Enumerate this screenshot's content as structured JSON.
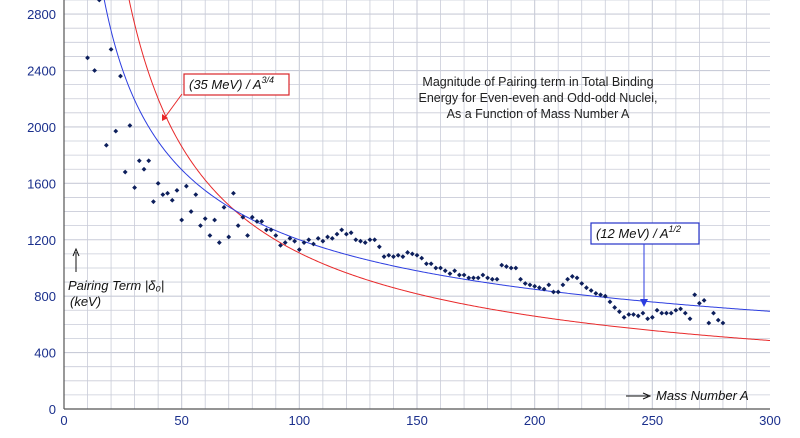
{
  "chart_data": {
    "type": "scatter",
    "title_lines": [
      "Magnitude of Pairing term in Total Binding",
      "Energy for Even-even and Odd-odd Nuclei,",
      "As a Function of Mass Number A"
    ],
    "ylabel_lines": [
      "Pairing Term |δ₀|",
      "(keV)"
    ],
    "xlabel": "Mass Number A",
    "xlim": [
      0,
      300
    ],
    "ylim": [
      0,
      2900
    ],
    "x_ticks": [
      0,
      50,
      100,
      150,
      200,
      250,
      300
    ],
    "y_ticks": [
      0,
      400,
      800,
      1200,
      1600,
      2000,
      2400,
      2800
    ],
    "grid": true,
    "colors": {
      "points": "#0d1f5c",
      "red_curve": "#e8292a",
      "blue_curve": "#2d3ee0",
      "grid": "#c9ccd8",
      "tick_text": "#1a2f8c"
    },
    "curves": [
      {
        "label_main": "(35 MeV) / A",
        "label_exp": "3/4",
        "coef_kev": 35000,
        "power": 0.75,
        "color": "red"
      },
      {
        "label_main": "(12 MeV) / A",
        "label_exp": "1/2",
        "coef_kev": 12000,
        "power": 0.5,
        "color": "blue"
      }
    ],
    "points": [
      [
        10,
        2490
      ],
      [
        11,
        2950
      ],
      [
        13,
        2400
      ],
      [
        15,
        2900
      ],
      [
        18,
        1870
      ],
      [
        20,
        2550
      ],
      [
        22,
        1970
      ],
      [
        24,
        2360
      ],
      [
        26,
        1680
      ],
      [
        28,
        2010
      ],
      [
        30,
        1570
      ],
      [
        32,
        1760
      ],
      [
        34,
        1700
      ],
      [
        36,
        1760
      ],
      [
        38,
        1470
      ],
      [
        40,
        1600
      ],
      [
        42,
        1520
      ],
      [
        44,
        1530
      ],
      [
        46,
        1480
      ],
      [
        48,
        1550
      ],
      [
        50,
        1340
      ],
      [
        52,
        1580
      ],
      [
        54,
        1400
      ],
      [
        56,
        1520
      ],
      [
        58,
        1300
      ],
      [
        60,
        1350
      ],
      [
        62,
        1230
      ],
      [
        64,
        1340
      ],
      [
        66,
        1180
      ],
      [
        68,
        1430
      ],
      [
        70,
        1220
      ],
      [
        72,
        1530
      ],
      [
        74,
        1300
      ],
      [
        76,
        1360
      ],
      [
        78,
        1230
      ],
      [
        80,
        1360
      ],
      [
        82,
        1330
      ],
      [
        84,
        1330
      ],
      [
        86,
        1270
      ],
      [
        88,
        1270
      ],
      [
        90,
        1230
      ],
      [
        92,
        1160
      ],
      [
        94,
        1180
      ],
      [
        96,
        1210
      ],
      [
        98,
        1190
      ],
      [
        100,
        1130
      ],
      [
        102,
        1180
      ],
      [
        104,
        1200
      ],
      [
        106,
        1170
      ],
      [
        108,
        1210
      ],
      [
        110,
        1190
      ],
      [
        112,
        1220
      ],
      [
        114,
        1210
      ],
      [
        116,
        1240
      ],
      [
        118,
        1270
      ],
      [
        120,
        1240
      ],
      [
        122,
        1250
      ],
      [
        124,
        1200
      ],
      [
        126,
        1190
      ],
      [
        128,
        1180
      ],
      [
        130,
        1200
      ],
      [
        132,
        1200
      ],
      [
        134,
        1150
      ],
      [
        136,
        1080
      ],
      [
        138,
        1090
      ],
      [
        140,
        1080
      ],
      [
        142,
        1090
      ],
      [
        144,
        1080
      ],
      [
        146,
        1110
      ],
      [
        148,
        1100
      ],
      [
        150,
        1090
      ],
      [
        152,
        1070
      ],
      [
        154,
        1030
      ],
      [
        156,
        1030
      ],
      [
        158,
        1000
      ],
      [
        160,
        1000
      ],
      [
        162,
        980
      ],
      [
        164,
        960
      ],
      [
        166,
        980
      ],
      [
        168,
        950
      ],
      [
        170,
        950
      ],
      [
        172,
        930
      ],
      [
        174,
        930
      ],
      [
        176,
        930
      ],
      [
        178,
        950
      ],
      [
        180,
        930
      ],
      [
        182,
        920
      ],
      [
        184,
        920
      ],
      [
        186,
        1020
      ],
      [
        188,
        1010
      ],
      [
        190,
        1000
      ],
      [
        192,
        1000
      ],
      [
        194,
        920
      ],
      [
        196,
        890
      ],
      [
        198,
        880
      ],
      [
        200,
        870
      ],
      [
        202,
        860
      ],
      [
        204,
        850
      ],
      [
        206,
        880
      ],
      [
        208,
        830
      ],
      [
        210,
        830
      ],
      [
        212,
        880
      ],
      [
        214,
        920
      ],
      [
        216,
        940
      ],
      [
        218,
        930
      ],
      [
        220,
        890
      ],
      [
        222,
        860
      ],
      [
        224,
        840
      ],
      [
        226,
        820
      ],
      [
        228,
        810
      ],
      [
        230,
        800
      ],
      [
        232,
        760
      ],
      [
        234,
        720
      ],
      [
        236,
        690
      ],
      [
        238,
        650
      ],
      [
        240,
        670
      ],
      [
        242,
        670
      ],
      [
        244,
        660
      ],
      [
        246,
        680
      ],
      [
        248,
        640
      ],
      [
        250,
        650
      ],
      [
        252,
        700
      ],
      [
        254,
        680
      ],
      [
        256,
        680
      ],
      [
        258,
        680
      ],
      [
        260,
        700
      ],
      [
        262,
        710
      ],
      [
        264,
        680
      ],
      [
        266,
        640
      ],
      [
        268,
        810
      ],
      [
        270,
        750
      ],
      [
        272,
        770
      ],
      [
        274,
        610
      ],
      [
        276,
        680
      ],
      [
        278,
        630
      ],
      [
        280,
        610
      ]
    ]
  }
}
